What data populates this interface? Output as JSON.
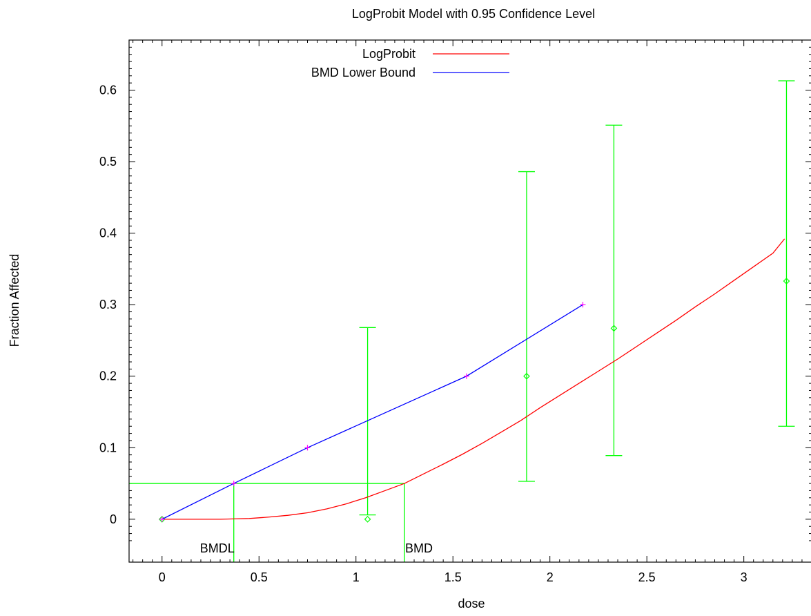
{
  "chart_data": {
    "type": "line",
    "title": "LogProbit Model with 0.95 Confidence Level",
    "xlabel": "dose",
    "ylabel": "Fraction Affected",
    "xlim": [
      -0.17,
      3.35
    ],
    "ylim": [
      -0.06,
      0.67
    ],
    "x_ticks": [
      0,
      0.5,
      1,
      1.5,
      2,
      2.5,
      3
    ],
    "x_tick_labels": [
      "0",
      "0.5",
      "1",
      "1.5",
      "2",
      "2.5",
      "3"
    ],
    "y_ticks": [
      0,
      0.1,
      0.2,
      0.3,
      0.4,
      0.5,
      0.6
    ],
    "y_tick_labels": [
      "0",
      "0.1",
      "0.2",
      "0.3",
      "0.4",
      "0.5",
      "0.6"
    ],
    "legend_position": "top-center",
    "series": [
      {
        "name": "LogProbit",
        "color": "#ff0000",
        "x": [
          0.0,
          0.1,
          0.2,
          0.3,
          0.37,
          0.45,
          0.55,
          0.65,
          0.75,
          0.85,
          0.95,
          1.05,
          1.15,
          1.25,
          1.35,
          1.45,
          1.55,
          1.65,
          1.75,
          1.85,
          1.95,
          2.05,
          2.15,
          2.25,
          2.35,
          2.45,
          2.55,
          2.65,
          2.75,
          2.85,
          2.95,
          3.05,
          3.15,
          3.21
        ],
        "y": [
          0.0,
          0.0,
          0.0,
          0.0,
          0.0005,
          0.001,
          0.003,
          0.0055,
          0.009,
          0.0145,
          0.0215,
          0.03,
          0.04,
          0.05,
          0.0635,
          0.077,
          0.091,
          0.106,
          0.122,
          0.138,
          0.156,
          0.173,
          0.19,
          0.207,
          0.224,
          0.242,
          0.26,
          0.278,
          0.297,
          0.315,
          0.334,
          0.353,
          0.372,
          0.392
        ]
      },
      {
        "name": "BMD Lower Bound",
        "color": "#0000ff",
        "x": [
          0.0,
          0.37,
          0.75,
          1.57,
          2.17
        ],
        "y": [
          0.0,
          0.05,
          0.1,
          0.2,
          0.3
        ]
      }
    ],
    "lower_bound_markers": {
      "color": "#ff00ff",
      "x": [
        0.0,
        0.37,
        0.75,
        1.57,
        2.17
      ],
      "y": [
        0.0,
        0.05,
        0.1,
        0.2,
        0.3
      ]
    },
    "observations": {
      "color": "#00ff00",
      "points": [
        {
          "x": 0.0,
          "y": 0.0,
          "low": null,
          "high": null
        },
        {
          "x": 1.06,
          "y": 0.0,
          "low": 0.006,
          "high": 0.268
        },
        {
          "x": 1.88,
          "y": 0.2,
          "low": 0.053,
          "high": 0.486
        },
        {
          "x": 2.33,
          "y": 0.267,
          "low": 0.089,
          "high": 0.551
        },
        {
          "x": 3.22,
          "y": 0.333,
          "low": 0.13,
          "high": 0.613
        }
      ]
    },
    "bmr_level": 0.05,
    "bmd": 1.25,
    "bmdl": 0.37,
    "annotations": {
      "bmd_label": "BMD",
      "bmdl_label": "BMDL"
    }
  }
}
